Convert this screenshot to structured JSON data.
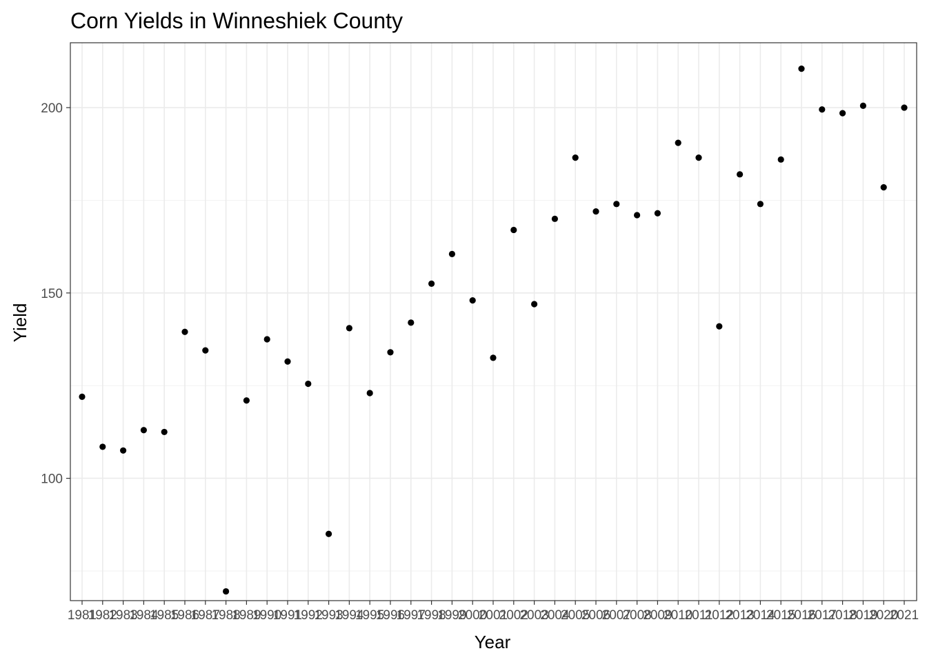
{
  "chart_data": {
    "type": "scatter",
    "title": "Corn Yields in Winneshiek County",
    "xlabel": "Year",
    "ylabel": "Yield",
    "x": [
      "1981",
      "1982",
      "1983",
      "1984",
      "1985",
      "1986",
      "1987",
      "1988",
      "1989",
      "1990",
      "1991",
      "1992",
      "1993",
      "1994",
      "1995",
      "1996",
      "1997",
      "1998",
      "1999",
      "2000",
      "2001",
      "2002",
      "2003",
      "2004",
      "2005",
      "2006",
      "2007",
      "2008",
      "2009",
      "2010",
      "2011",
      "2012",
      "2013",
      "2014",
      "2015",
      "2016",
      "2017",
      "2018",
      "2019",
      "2020",
      "2021"
    ],
    "series": [
      {
        "values": [
          122,
          108.5,
          107.5,
          113,
          112.5,
          139.5,
          134.5,
          69.5,
          121,
          137.5,
          131.5,
          125.5,
          85,
          140.5,
          123,
          134,
          142,
          152.5,
          160.5,
          148,
          132.5,
          167,
          147,
          170,
          186.5,
          172,
          174,
          171,
          171.5,
          190.5,
          186.5,
          141,
          182,
          174,
          186,
          210.5,
          199.5,
          198.5,
          200.5,
          178.5,
          200
        ]
      }
    ],
    "ylim": [
      67,
      217.5
    ],
    "yticks": [
      "100",
      "150",
      "200"
    ],
    "grid": true,
    "legend": "none"
  }
}
